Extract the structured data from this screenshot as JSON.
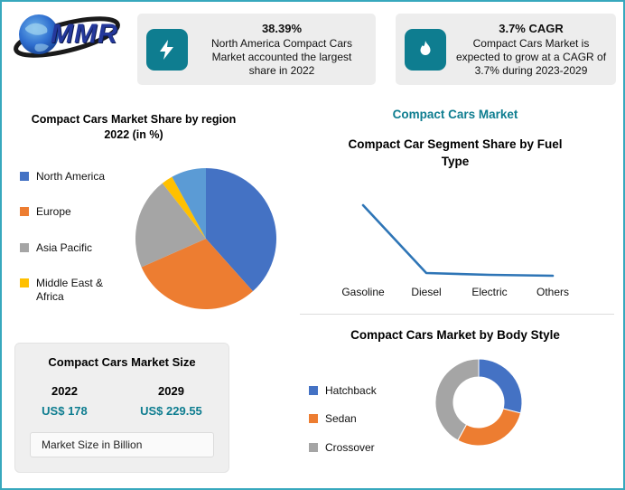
{
  "colors": {
    "accent_teal": "#0e7d90",
    "card_background": "#ededed",
    "page_border": "#37a8bd",
    "line_series_blue": "#2e75b6"
  },
  "logo": {
    "title": "MMR"
  },
  "stat_cards": [
    {
      "icon": "lightning-icon",
      "value": "38.39%",
      "description": "North America Compact Cars Market accounted the largest share in 2022"
    },
    {
      "icon": "flame-icon",
      "value": "3.7% CAGR",
      "description": "Compact Cars Market is expected to grow at a CAGR of 3.7% during 2023-2029"
    }
  ],
  "right_panel": {
    "heading": "Compact Cars Market"
  },
  "market_size": {
    "title": "Compact Cars Market Size",
    "columns": [
      {
        "year": "2022",
        "value": "US$ 178"
      },
      {
        "year": "2029",
        "value": "US$ 229.55"
      }
    ],
    "note": "Market Size in Billion"
  },
  "chart_data": [
    {
      "id": "region_pie",
      "type": "pie",
      "title": "Compact Cars Market Share by region 2022 (in %)",
      "legend_position": "left",
      "slices": [
        {
          "label": "North America",
          "value": 38.39,
          "color": "#4472c4"
        },
        {
          "label": "Europe",
          "value": 30.0,
          "color": "#ed7d31"
        },
        {
          "label": "Asia Pacific",
          "value": 21.0,
          "color": "#a5a5a5"
        },
        {
          "label": "Middle East & Africa",
          "value": 2.6,
          "color": "#ffc000"
        },
        {
          "label": "",
          "value": 8.0,
          "color": "#5b9bd5"
        }
      ]
    },
    {
      "id": "fuel_type_line",
      "type": "line",
      "title": "Compact Car Segment Share by Fuel Type",
      "categories": [
        "Gasoline",
        "Diesel",
        "Electric",
        "Others"
      ],
      "values": [
        85,
        10,
        8,
        7
      ],
      "ylim": [
        0,
        100
      ],
      "grid": false,
      "line_color": "#2e75b6"
    },
    {
      "id": "body_style_donut",
      "type": "donut",
      "title": "Compact Cars Market by Body Style",
      "legend_position": "left",
      "slices": [
        {
          "label": "Hatchback",
          "value": 29,
          "color": "#4472c4"
        },
        {
          "label": "Sedan",
          "value": 29,
          "color": "#ed7d31"
        },
        {
          "label": "Crossover",
          "value": 42,
          "color": "#a5a5a5"
        }
      ]
    }
  ]
}
